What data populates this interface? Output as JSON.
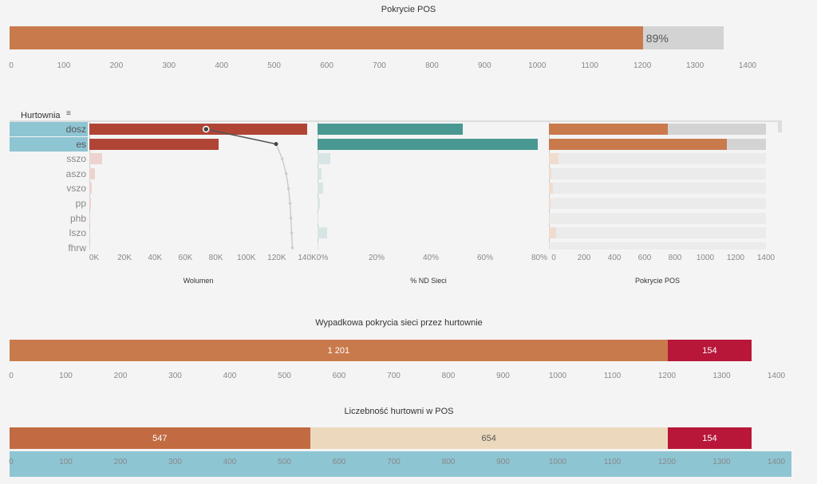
{
  "colors": {
    "orange": "#c97a4c",
    "gray": "#d3d3d3",
    "red": "#b04535",
    "teal": "#4a9892",
    "crimson": "#b8173a",
    "beige": "#ecd9bd",
    "brown": "#c26a42",
    "select": "#8ec5d3"
  },
  "chart_data": [
    {
      "type": "bar",
      "title": "Pokrycie POS",
      "value": 1201,
      "total": 1355,
      "label": "89%",
      "xlim": [
        0,
        1400
      ],
      "ticks": [
        0,
        100,
        200,
        300,
        400,
        500,
        600,
        700,
        800,
        900,
        1000,
        1100,
        1200,
        1300,
        1400
      ]
    },
    {
      "type": "bar",
      "header": "Hurtownia",
      "categories": [
        "dosz",
        "es",
        "sszo",
        "aszo",
        "vszo",
        "pp",
        "phb",
        "lszo",
        "fhrw"
      ],
      "selected": [
        "dosz",
        "es"
      ],
      "panels": [
        {
          "title": "Wolumen",
          "values": [
            140000,
            83000,
            8000,
            3500,
            1500,
            1000,
            300,
            300,
            200
          ],
          "line": [
            75000,
            120000,
            124000,
            126500,
            128000,
            129000,
            129500,
            130000,
            130500
          ],
          "xlim": [
            0,
            140000
          ],
          "ticks": [
            "0K",
            "20K",
            "40K",
            "60K",
            "80K",
            "100K",
            "120K",
            "140K"
          ]
        },
        {
          "title": "% ND Sieci",
          "values": [
            52.5,
            79.5,
            4.5,
            1.5,
            2,
            1,
            0.2,
            3.5,
            0
          ],
          "xlim": [
            0,
            80
          ],
          "ticks": [
            "0%",
            "20%",
            "40%",
            "60%",
            "80%"
          ]
        },
        {
          "title": "Pokrycie POS",
          "values": [
            765,
            1150,
            60,
            15,
            25,
            10,
            0,
            45,
            0
          ],
          "xlim": [
            0,
            1400
          ],
          "ticks": [
            "0",
            "200",
            "400",
            "600",
            "800",
            "1000",
            "1200",
            "1400"
          ]
        }
      ]
    },
    {
      "type": "stacked-bar",
      "title": "Wypadkowa pokrycia sieci przez hurtownie",
      "segments": [
        {
          "value": 1201,
          "label": "1 201"
        },
        {
          "value": 154,
          "label": "154"
        }
      ],
      "xlim": [
        0,
        1400
      ],
      "ticks": [
        0,
        100,
        200,
        300,
        400,
        500,
        600,
        700,
        800,
        900,
        1000,
        1100,
        1200,
        1300,
        1400
      ]
    },
    {
      "type": "stacked-bar",
      "title": "Liczebność hurtowni w POS",
      "segments": [
        {
          "value": 547,
          "label": "547"
        },
        {
          "value": 654,
          "label": "654"
        },
        {
          "value": 154,
          "label": "154"
        }
      ],
      "xlim": [
        0,
        1400
      ],
      "ticks": [
        0,
        100,
        200,
        300,
        400,
        500,
        600,
        700,
        800,
        900,
        1000,
        1100,
        1200,
        1300,
        1400
      ]
    }
  ]
}
